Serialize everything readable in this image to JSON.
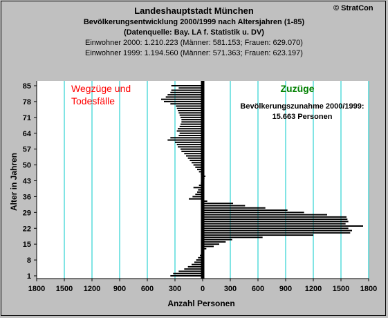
{
  "header": {
    "title": "Landeshauptstadt München",
    "subtitle": "Bevölkerungsentwicklung 2000/1999  nach Altersjahren (1-85)",
    "source": "(Datenquelle: Bay. LA f. Statistik u. DV)",
    "line2000": "Einwohner 2000: 1.210.223  (Männer: 581.153; Frauen: 629.070)",
    "line1999": "Einwohner 1999: 1.194.560  (Männer: 571.363; Frauen: 623.197)",
    "copyright": "© StratCon"
  },
  "annotations": {
    "left_line1": "Wegzüge und",
    "left_line2": "Todesfälle",
    "right": "Zuzüge",
    "summary_line1": "Bevölkerungszunahme 2000/1999:",
    "summary_line2": "15.663 Personen"
  },
  "colors": {
    "background": "#c0c0c0",
    "plot_background": "#ffffff",
    "bars": "#000000",
    "gridlines": "#00c8c8",
    "left_label": "#ff0000",
    "right_label": "#008000"
  },
  "chart_data": {
    "type": "bar",
    "orientation": "horizontal",
    "xlabel": "Anzahl Personen",
    "ylabel": "Alter in Jahren",
    "xlim": [
      -1800,
      1800
    ],
    "ylim": [
      1,
      85
    ],
    "x_ticks": [
      -1800,
      -1500,
      -1200,
      -900,
      -600,
      -300,
      0,
      300,
      600,
      900,
      1200,
      1500,
      1800
    ],
    "x_tick_labels": [
      "1800",
      "1500",
      "1200",
      "900",
      "600",
      "300",
      "0",
      "300",
      "600",
      "900",
      "1200",
      "1500",
      "1800"
    ],
    "y_ticks": [
      1,
      8,
      15,
      22,
      29,
      36,
      43,
      50,
      57,
      64,
      71,
      78,
      85
    ],
    "grid": true,
    "categories": [
      1,
      2,
      3,
      4,
      5,
      6,
      7,
      8,
      9,
      10,
      11,
      12,
      13,
      14,
      15,
      16,
      17,
      18,
      19,
      20,
      21,
      22,
      23,
      24,
      25,
      26,
      27,
      28,
      29,
      30,
      31,
      32,
      33,
      34,
      35,
      36,
      37,
      38,
      39,
      40,
      41,
      42,
      43,
      44,
      45,
      46,
      47,
      48,
      49,
      50,
      51,
      52,
      53,
      54,
      55,
      56,
      57,
      58,
      59,
      60,
      61,
      62,
      63,
      64,
      65,
      66,
      67,
      68,
      69,
      70,
      71,
      72,
      73,
      74,
      75,
      76,
      77,
      78,
      79,
      80,
      81,
      82,
      83,
      84,
      85
    ],
    "values": [
      -350,
      -320,
      -260,
      -200,
      -160,
      -120,
      -90,
      -70,
      -50,
      -30,
      -10,
      10,
      40,
      120,
      180,
      250,
      320,
      650,
      1200,
      1600,
      1620,
      1580,
      1740,
      1550,
      1580,
      1570,
      1560,
      1350,
      1100,
      920,
      680,
      460,
      330,
      50,
      -150,
      -110,
      -80,
      -60,
      -50,
      -100,
      -40,
      -20,
      -10,
      20,
      30,
      -20,
      -40,
      -60,
      -80,
      -100,
      -120,
      -140,
      -160,
      -180,
      -200,
      -230,
      -240,
      -270,
      -280,
      -300,
      -380,
      -350,
      -260,
      -250,
      -280,
      -270,
      -250,
      -240,
      -230,
      -230,
      -240,
      -250,
      -260,
      -270,
      -280,
      -290,
      -350,
      -420,
      -450,
      -400,
      -380,
      -350,
      -340,
      -260,
      -340
    ]
  }
}
